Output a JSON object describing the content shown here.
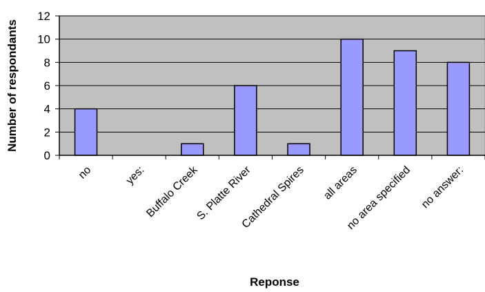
{
  "chart_data": {
    "type": "bar",
    "title": "",
    "xlabel": "Reponse",
    "ylabel": "Number of respondants",
    "categories": [
      "no",
      "yes:",
      "Buffalo Creek",
      "S. Platte River",
      "Cathedral Spires",
      "all areas",
      "no area specified",
      "no answer:"
    ],
    "values": [
      4,
      0,
      1,
      6,
      1,
      10,
      9,
      8
    ],
    "ylim": [
      0,
      12
    ],
    "yticks": [
      0,
      2,
      4,
      6,
      8,
      10,
      12
    ],
    "grid": true,
    "legend": "none",
    "colors": {
      "bar_fill": "#9999ff",
      "plot_background": "#c0c0c0",
      "gridline": "#000000"
    }
  }
}
